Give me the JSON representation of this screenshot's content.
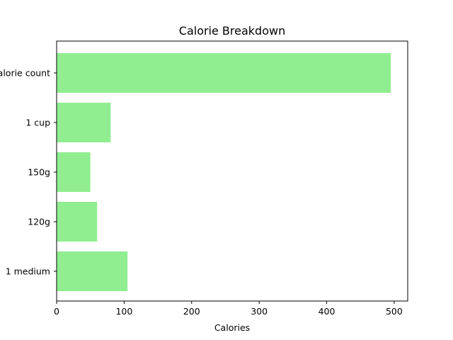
{
  "chart_data": {
    "type": "bar",
    "orientation": "horizontal",
    "title": "Calorie Breakdown",
    "xlabel": "Calories",
    "ylabel": "",
    "xlim": [
      0,
      520
    ],
    "xticks": [
      0,
      100,
      200,
      300,
      400,
      500
    ],
    "categories": [
      "1 medium",
      "120g",
      "150g",
      "1 cup",
      "Calorie count"
    ],
    "values": [
      105,
      60,
      50,
      80,
      495
    ],
    "bar_color": "#90ee90",
    "grid": false,
    "legend": "none"
  }
}
